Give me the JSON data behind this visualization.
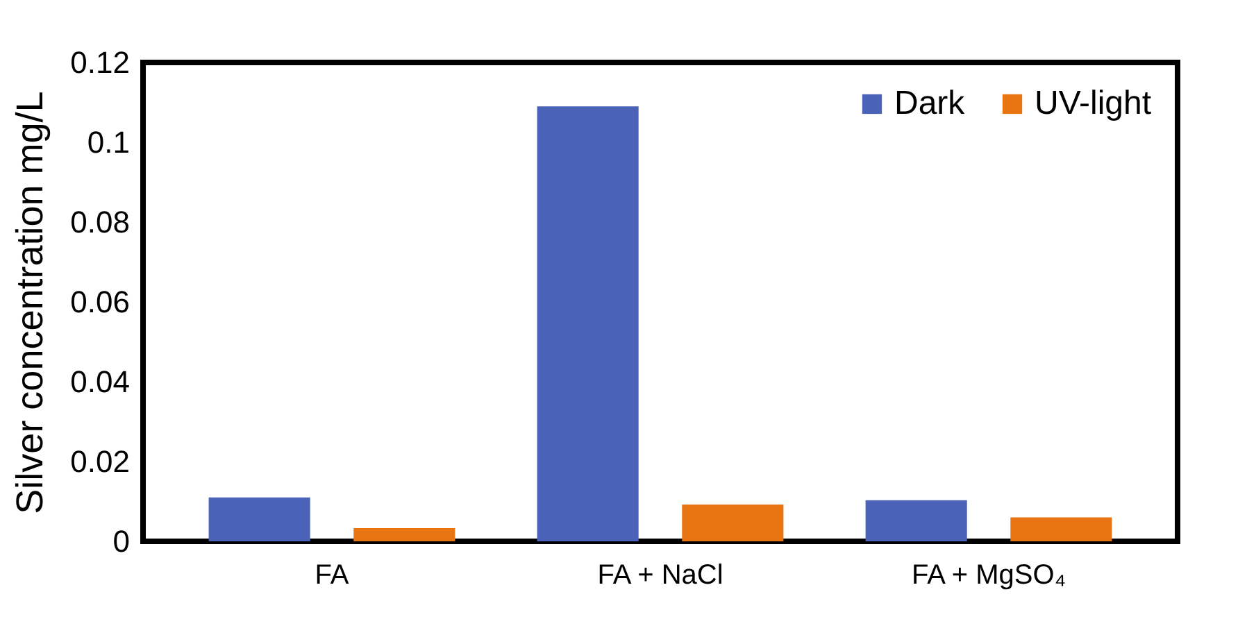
{
  "chart_data": {
    "type": "bar",
    "ylabel": "Silver concentration mg/L",
    "categories": [
      "FA",
      "FA + NaCl",
      "FA + MgSO₄"
    ],
    "series": [
      {
        "name": "Dark",
        "color": "#4a62b8",
        "values": [
          0.011,
          0.109,
          0.0103
        ]
      },
      {
        "name": "UV-light",
        "color": "#e87511",
        "values": [
          0.0033,
          0.0092,
          0.006
        ]
      }
    ],
    "ylim": [
      0,
      0.12
    ],
    "yticks": [
      0,
      0.02,
      0.04,
      0.06,
      0.08,
      0.1,
      0.12
    ],
    "grid": false,
    "legend": "top right"
  }
}
